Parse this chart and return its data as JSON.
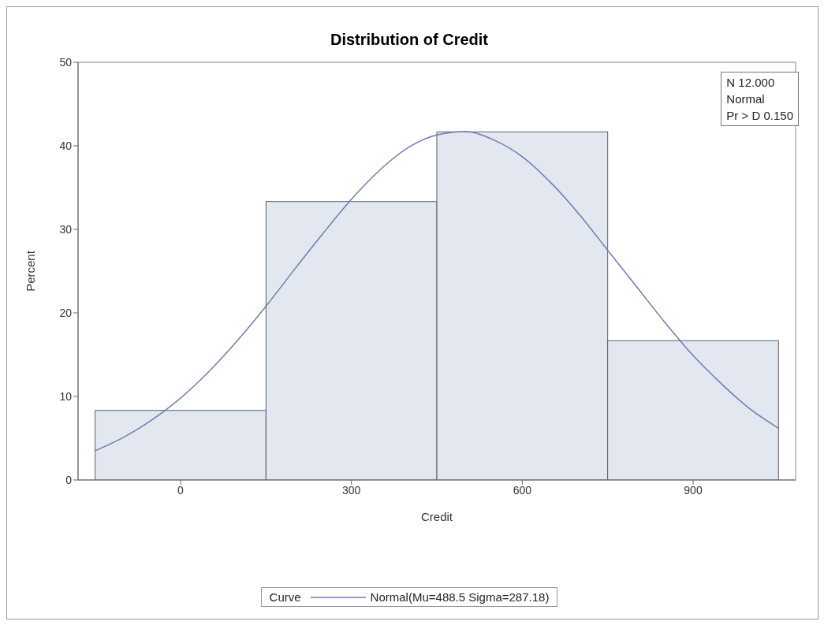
{
  "chart_data": {
    "type": "histogram",
    "title": "Distribution of Credit",
    "xlabel": "Credit",
    "ylabel": "Percent",
    "legend_title": "Curve",
    "legend": "bottom",
    "grid": false,
    "bins": [
      -150,
      150,
      450,
      750,
      1050
    ],
    "values": [
      8.33,
      33.33,
      41.67,
      16.67
    ],
    "color": "#e3e7f0",
    "xlim": [
      -180,
      1080
    ],
    "xticks": [
      0,
      300,
      600,
      900
    ],
    "ylim": [
      0,
      50
    ],
    "yticks": [
      0,
      10,
      20,
      30,
      40,
      50
    ],
    "annotations": [
      "N 12.000",
      "Normal",
      "Pr > D 0.150"
    ],
    "series": [
      {
        "type": "line",
        "name": "Normal(Mu=488.5 Sigma=287.18)",
        "color": "#6f7bb5",
        "x": [
          -150,
          -100,
          -50,
          0,
          50,
          100,
          150,
          200,
          250,
          300,
          350,
          400,
          450,
          500,
          550,
          600,
          650,
          700,
          750,
          800,
          850,
          900,
          950,
          1000,
          1050
        ],
        "values": [
          3.5,
          5.1,
          7.2,
          9.8,
          13.0,
          16.7,
          20.8,
          25.2,
          29.5,
          33.6,
          37.1,
          39.8,
          41.3,
          41.7,
          40.7,
          38.7,
          35.6,
          31.8,
          27.5,
          23.2,
          18.9,
          14.9,
          11.5,
          8.5,
          6.2
        ]
      }
    ]
  }
}
